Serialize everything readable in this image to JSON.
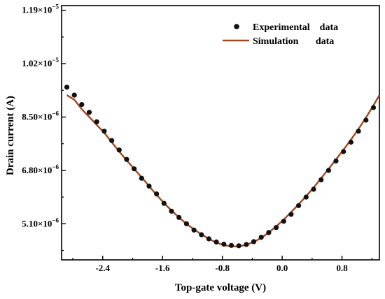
{
  "chart_data": {
    "type": "scatter",
    "xlabel": "Top-gate voltage (V)",
    "ylabel": "Drain current (A)",
    "xlim": [
      -2.95,
      1.3
    ],
    "ylim": [
      3.95e-06,
      1.205e-05
    ],
    "x_ticks": [
      {
        "value": -2.4,
        "label": "-2.4"
      },
      {
        "value": -1.6,
        "label": "-1.6"
      },
      {
        "value": -0.8,
        "label": "-0.8"
      },
      {
        "value": 0.0,
        "label": "0.0"
      },
      {
        "value": 0.8,
        "label": "0.8"
      }
    ],
    "y_ticks": [
      {
        "value": 5.1e-06,
        "mantissa": "5.10",
        "exponent": "−6"
      },
      {
        "value": 6.8e-06,
        "mantissa": "6.80",
        "exponent": "−6"
      },
      {
        "value": 8.5e-06,
        "mantissa": "8.50",
        "exponent": "−6"
      },
      {
        "value": 1.02e-05,
        "mantissa": "1.02",
        "exponent": "−5"
      },
      {
        "value": 1.19e-05,
        "mantissa": "1.19",
        "exponent": "−5"
      }
    ],
    "times_sign": "×10",
    "grid": false,
    "legend_position": "top-right",
    "series": [
      {
        "name": "Experimental    data",
        "kind": "points",
        "color": "#111111",
        "x": [
          -2.88,
          -2.78,
          -2.68,
          -2.58,
          -2.48,
          -2.38,
          -2.28,
          -2.18,
          -2.08,
          -1.98,
          -1.88,
          -1.78,
          -1.68,
          -1.58,
          -1.48,
          -1.38,
          -1.28,
          -1.18,
          -1.08,
          -0.98,
          -0.88,
          -0.78,
          -0.68,
          -0.58,
          -0.48,
          -0.38,
          -0.28,
          -0.18,
          -0.08,
          0.02,
          0.12,
          0.22,
          0.32,
          0.42,
          0.52,
          0.62,
          0.72,
          0.82,
          0.92,
          1.02,
          1.12,
          1.22
        ],
        "y": [
          9.45e-06,
          9.2e-06,
          8.9e-06,
          8.65e-06,
          8.35e-06,
          8.05e-06,
          7.75e-06,
          7.45e-06,
          7.15e-06,
          6.85e-06,
          6.55e-06,
          6.3e-06,
          6.05e-06,
          5.75e-06,
          5.5e-06,
          5.3e-06,
          5.1e-06,
          4.9e-06,
          4.75e-06,
          4.62e-06,
          4.52e-06,
          4.45e-06,
          4.41e-06,
          4.4e-06,
          4.44e-06,
          4.53e-06,
          4.67e-06,
          4.82e-06,
          4.98e-06,
          5.18e-06,
          5.4e-06,
          5.68e-06,
          5.95e-06,
          6.2e-06,
          6.5e-06,
          6.8e-06,
          7.1e-06,
          7.4e-06,
          7.7e-06,
          8.05e-06,
          8.4e-06,
          8.8e-06
        ]
      },
      {
        "name": "Simulation       data",
        "kind": "line",
        "color": "#a0481f",
        "x": [
          -2.88,
          -2.78,
          -2.68,
          -2.58,
          -2.48,
          -2.38,
          -2.28,
          -2.18,
          -2.08,
          -1.98,
          -1.88,
          -1.78,
          -1.68,
          -1.58,
          -1.48,
          -1.38,
          -1.28,
          -1.18,
          -1.08,
          -0.98,
          -0.88,
          -0.78,
          -0.68,
          -0.58,
          -0.48,
          -0.38,
          -0.28,
          -0.18,
          -0.08,
          0.02,
          0.12,
          0.22,
          0.32,
          0.42,
          0.52,
          0.62,
          0.72,
          0.82,
          0.92,
          1.02,
          1.12,
          1.22,
          1.3
        ],
        "y": [
          9.2e-06,
          9.05e-06,
          8.75e-06,
          8.5e-06,
          8.25e-06,
          8e-06,
          7.7e-06,
          7.4e-06,
          7.12e-06,
          6.85e-06,
          6.58e-06,
          6.3e-06,
          6.02e-06,
          5.76e-06,
          5.52e-06,
          5.3e-06,
          5.1e-06,
          4.92e-06,
          4.76e-06,
          4.62e-06,
          4.5e-06,
          4.42e-06,
          4.38e-06,
          4.38e-06,
          4.43e-06,
          4.52e-06,
          4.65e-06,
          4.82e-06,
          5.02e-06,
          5.23e-06,
          5.47e-06,
          5.72e-06,
          5.98e-06,
          6.25e-06,
          6.55e-06,
          6.85e-06,
          7.15e-06,
          7.46e-06,
          7.78e-06,
          8.12e-06,
          8.48e-06,
          8.87e-06,
          9.2e-06
        ]
      }
    ]
  }
}
